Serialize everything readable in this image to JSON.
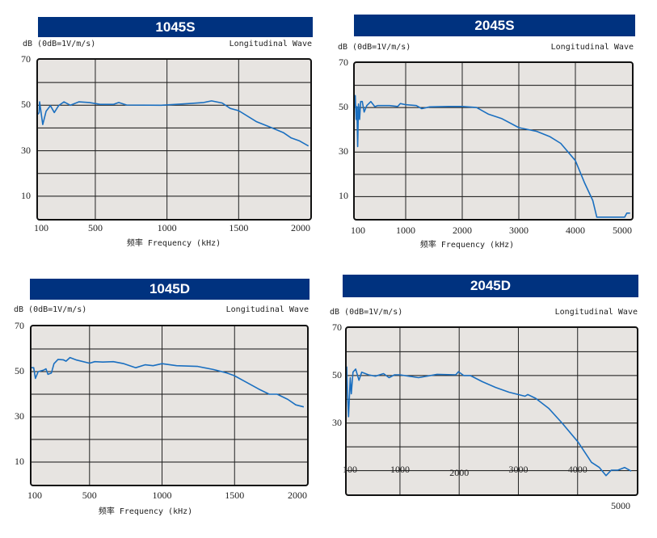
{
  "chart_data": [
    {
      "type": "line",
      "title": "1045S",
      "ylabel": "dB (0dB=1V/m/s)",
      "annotation": "Longitudinal Wave",
      "xlabel": "频率 Frequency (kHz)",
      "xlim": [
        100,
        2000
      ],
      "ylim": [
        0,
        70
      ],
      "xticks": [
        100,
        500,
        1000,
        1500,
        2000
      ],
      "yticks": [
        70,
        50,
        30,
        10
      ],
      "grid": true,
      "color": "#1a6fc0",
      "series": [
        {
          "x": [
            100,
            108,
            111,
            133,
            157,
            187,
            214,
            244,
            281,
            326,
            385,
            459,
            533,
            626,
            663,
            718,
            959,
            1144,
            1255,
            1311,
            1385,
            1441,
            1500,
            1626,
            1718,
            1811,
            1867,
            1922,
            1987
          ],
          "y": [
            46,
            46.8,
            51.5,
            41.5,
            47.4,
            49.8,
            46.8,
            49.8,
            51.5,
            50,
            51.5,
            51.2,
            50.4,
            50.4,
            51.2,
            50.1,
            50,
            50.7,
            51.2,
            51.9,
            51,
            48.6,
            47.6,
            42.7,
            40.4,
            38,
            35.6,
            34.4,
            32.1
          ]
        }
      ]
    },
    {
      "type": "line",
      "title": "2045S",
      "ylabel": "dB (0dB=1V/m/s)",
      "annotation": "Longitudinal Wave",
      "xlabel": "频率 Frequency (kHz)",
      "xlim": [
        100,
        5000
      ],
      "ylim": [
        0,
        70
      ],
      "xticks": [
        100,
        1000,
        2000,
        3000,
        4000,
        5000
      ],
      "yticks": [
        70,
        50,
        30,
        10
      ],
      "grid": true,
      "color": "#1a6fc0",
      "series": [
        {
          "x": [
            100,
            109,
            124,
            138,
            152,
            166,
            185,
            204,
            233,
            266,
            313,
            384,
            455,
            503,
            574,
            716,
            858,
            905,
            1000,
            1189,
            1284,
            1426,
            1757,
            2000,
            2253,
            2466,
            2702,
            3000,
            3317,
            3553,
            3742,
            4000,
            4165,
            4307,
            4378,
            4872,
            4910,
            4967
          ],
          "y": [
            50,
            55.4,
            44.7,
            50.4,
            32.5,
            51.6,
            44.7,
            52.7,
            52.7,
            48,
            50.9,
            52.7,
            50.4,
            50.9,
            50.9,
            50.9,
            50.5,
            51.8,
            51.3,
            50.9,
            49.5,
            50.3,
            50.5,
            50.5,
            50,
            47,
            45,
            41,
            39.3,
            36.9,
            33.9,
            26.2,
            16,
            8.3,
            0.8,
            0.8,
            2.6,
            2.6
          ]
        }
      ]
    },
    {
      "type": "line",
      "title": "1045D",
      "ylabel": "dB (0dB=1V/m/s)",
      "annotation": "Longitudinal Wave",
      "xlabel": "频率 Frequency (kHz)",
      "xlim": [
        100,
        2000
      ],
      "ylim": [
        0,
        70
      ],
      "xticks": [
        100,
        500,
        1000,
        1500,
        2000
      ],
      "yticks": [
        70,
        50,
        30,
        10
      ],
      "grid": true,
      "color": "#1a6fc0",
      "series": [
        {
          "x": [
            100,
            115,
            127,
            146,
            182,
            200,
            213,
            237,
            255,
            283,
            319,
            338,
            365,
            411,
            500,
            536,
            591,
            664,
            737,
            819,
            883,
            938,
            1000,
            1100,
            1246,
            1356,
            1447,
            1498,
            1575,
            1666,
            1739,
            1794,
            1867,
            1922,
            1977
          ],
          "y": [
            51.7,
            51.7,
            47,
            50,
            50.6,
            51.2,
            48.8,
            49.4,
            53.5,
            55.4,
            55.2,
            54.6,
            56.2,
            55.1,
            53.7,
            54.4,
            54.2,
            54.4,
            53.5,
            51.7,
            53,
            52.6,
            53.5,
            52.6,
            52.3,
            50.9,
            49.4,
            48.2,
            45.5,
            42.3,
            40,
            40,
            37.7,
            35.3,
            34.4
          ]
        }
      ]
    },
    {
      "type": "line",
      "title": "2045D",
      "ylabel": "dB (0dB=1V/m/s)",
      "annotation": "Longitudinal Wave",
      "xlabel": "",
      "xlim": [
        100,
        5000
      ],
      "ylim": [
        0,
        70
      ],
      "xticks": [
        100,
        1000,
        2000,
        3000,
        4000,
        5000
      ],
      "yticks": [
        70,
        50,
        30
      ],
      "grid": true,
      "color": "#1a6fc0",
      "series": [
        {
          "x": [
            100,
            114,
            132,
            160,
            178,
            206,
            252,
            308,
            354,
            469,
            585,
            723,
            815,
            908,
            1000,
            1314,
            1628,
            1942,
            1987,
            2076,
            2188,
            2391,
            2616,
            2841,
            3113,
            3158,
            3293,
            3517,
            3742,
            4009,
            4234,
            4368,
            4480,
            4569,
            4681,
            4794,
            4906
          ],
          "y": [
            53.8,
            42.3,
            32.7,
            49.1,
            42.3,
            51.4,
            52.7,
            48,
            51.4,
            50.3,
            49.7,
            50.8,
            49.1,
            50.3,
            50.3,
            49.1,
            50.5,
            50.3,
            51.6,
            50,
            50,
            47.4,
            45,
            43,
            41.3,
            42,
            40.4,
            36.1,
            29.9,
            22,
            13.5,
            11.3,
            7.9,
            10.2,
            10.2,
            11.3,
            9.8
          ]
        }
      ]
    }
  ]
}
